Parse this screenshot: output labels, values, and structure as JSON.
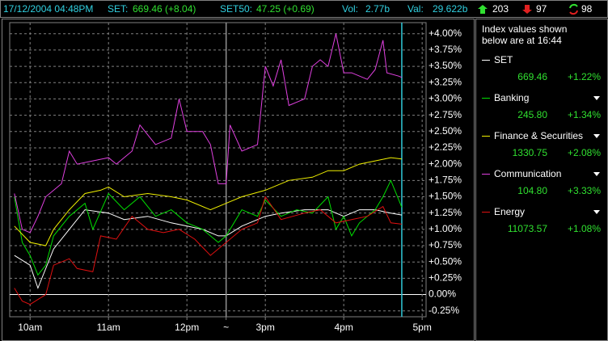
{
  "header": {
    "datetime": "17/12/2004 04:48PM",
    "set_label": "SET:",
    "set_value": "669.46 (+8.04)",
    "set50_label": "SET50:",
    "set50_value": "47.25 (+0.69)",
    "vol_label": "Vol:",
    "vol": "2.77b",
    "val_label": "Val:",
    "val": "29.622b",
    "advances": "203",
    "declines": "97",
    "unchanged": "98"
  },
  "sidebar": {
    "note": "Index values shown below are at 16:44",
    "items": [
      {
        "value": "669.46",
        "change": "+1.22%"
      },
      {
        "value": "245.80",
        "change": "+1.34%"
      },
      {
        "value": "1330.75",
        "change": "+2.08%"
      },
      {
        "value": "104.80",
        "change": "+3.33%"
      },
      {
        "value": "11073.57",
        "change": "+1.08%"
      }
    ]
  },
  "chart_data": {
    "type": "line",
    "xlim": [
      -0.26,
      5.05
    ],
    "ylim": [
      -0.34,
      4.17
    ],
    "xticks": [
      {
        "value": 0,
        "label": "10am"
      },
      {
        "value": 1,
        "label": "11am"
      },
      {
        "value": 2,
        "label": "12pm"
      },
      {
        "value": 2.5,
        "label": "~"
      },
      {
        "value": 3,
        "label": "3pm"
      },
      {
        "value": 4,
        "label": "4pm"
      },
      {
        "value": 5,
        "label": "5pm"
      }
    ],
    "yticks": [
      {
        "value": -0.25,
        "label": "-0.25%"
      },
      {
        "value": 0,
        "label": "0.00%"
      },
      {
        "value": 0.25,
        "label": "+0.25%"
      },
      {
        "value": 0.5,
        "label": "+0.50%"
      },
      {
        "value": 0.75,
        "label": "+0.75%"
      },
      {
        "value": 1,
        "label": "+1.00%"
      },
      {
        "value": 1.25,
        "label": "+1.25%"
      },
      {
        "value": 1.5,
        "label": "+1.50%"
      },
      {
        "value": 1.75,
        "label": "+1.75%"
      },
      {
        "value": 2,
        "label": "+2.00%"
      },
      {
        "value": 2.25,
        "label": "+2.25%"
      },
      {
        "value": 2.5,
        "label": "+2.50%"
      },
      {
        "value": 2.75,
        "label": "+2.75%"
      },
      {
        "value": 3,
        "label": "+3.00%"
      },
      {
        "value": 3.25,
        "label": "+3.25%"
      },
      {
        "value": 3.5,
        "label": "+3.50%"
      },
      {
        "value": 3.75,
        "label": "+3.75%"
      },
      {
        "value": 4,
        "label": "+4.00%"
      }
    ],
    "grid": true,
    "vlines": [
      {
        "x": 2.5,
        "color": "#909090"
      },
      {
        "x": 4.74,
        "color": "#30c8d8"
      }
    ],
    "series": [
      {
        "name": "SET",
        "color": "#ffffff",
        "x": [
          -0.2,
          0,
          0.1,
          0.3,
          0.5,
          0.7,
          1,
          1.2,
          1.5,
          1.8,
          2,
          2.2,
          2.4,
          2.5,
          2.7,
          3,
          3.2,
          3.5,
          3.8,
          4,
          4.2,
          4.4,
          4.6,
          4.74
        ],
        "values": [
          0.6,
          0.45,
          0.1,
          0.7,
          1.0,
          1.3,
          1.25,
          1.15,
          1.2,
          1.1,
          1.05,
          1.0,
          0.9,
          0.9,
          1.05,
          1.2,
          1.25,
          1.3,
          1.3,
          1.2,
          1.3,
          1.3,
          1.25,
          1.22
        ]
      },
      {
        "name": "Banking",
        "color": "#00e000",
        "x": [
          -0.2,
          -0.1,
          0,
          0.1,
          0.2,
          0.3,
          0.5,
          0.7,
          0.8,
          1,
          1.2,
          1.4,
          1.6,
          1.8,
          2,
          2.2,
          2.4,
          2.5,
          2.7,
          2.9,
          3,
          3.2,
          3.4,
          3.6,
          3.8,
          3.9,
          4,
          4.1,
          4.2,
          4.4,
          4.5,
          4.6,
          4.74
        ],
        "values": [
          1.5,
          0.8,
          0.6,
          0.3,
          0.45,
          0.9,
          1.2,
          1.4,
          1.0,
          1.55,
          1.3,
          1.5,
          1.2,
          1.3,
          1.1,
          1.0,
          0.8,
          0.9,
          1.3,
          1.2,
          1.45,
          1.2,
          1.3,
          1.25,
          1.5,
          1.0,
          1.2,
          0.9,
          1.1,
          1.3,
          1.5,
          1.75,
          1.34
        ]
      },
      {
        "name": "Finance & Securities",
        "color": "#f0f000",
        "x": [
          -0.2,
          0,
          0.2,
          0.3,
          0.5,
          0.7,
          0.9,
          1,
          1.2,
          1.5,
          1.8,
          2,
          2.3,
          2.5,
          2.7,
          3,
          3.3,
          3.6,
          3.8,
          4,
          4.2,
          4.4,
          4.6,
          4.74
        ],
        "values": [
          1.05,
          0.8,
          0.75,
          1.0,
          1.3,
          1.55,
          1.6,
          1.65,
          1.5,
          1.55,
          1.5,
          1.45,
          1.3,
          1.4,
          1.5,
          1.6,
          1.75,
          1.8,
          1.9,
          1.9,
          2.0,
          2.05,
          2.1,
          2.08
        ]
      },
      {
        "name": "Communication",
        "color": "#e040e0",
        "x": [
          -0.2,
          -0.1,
          0,
          0.1,
          0.2,
          0.4,
          0.5,
          0.6,
          0.8,
          1,
          1.1,
          1.3,
          1.4,
          1.6,
          1.8,
          1.9,
          2,
          2.2,
          2.3,
          2.4,
          2.5,
          2.55,
          2.7,
          2.9,
          3,
          3.1,
          3.2,
          3.3,
          3.5,
          3.6,
          3.7,
          3.8,
          3.9,
          4,
          4.1,
          4.3,
          4.4,
          4.5,
          4.55,
          4.7,
          4.74
        ],
        "values": [
          1.55,
          1.0,
          0.95,
          1.2,
          1.5,
          1.7,
          2.2,
          2.0,
          2.05,
          2.1,
          2.0,
          2.2,
          2.6,
          2.3,
          2.4,
          3.0,
          2.5,
          2.5,
          2.3,
          1.7,
          1.7,
          2.6,
          2.2,
          2.3,
          3.5,
          3.2,
          3.6,
          2.9,
          3.0,
          3.5,
          3.6,
          3.5,
          4.0,
          3.4,
          3.4,
          3.3,
          3.45,
          3.9,
          3.4,
          3.35,
          3.33
        ]
      },
      {
        "name": "Energy",
        "color": "#e01010",
        "x": [
          -0.2,
          -0.1,
          0,
          0.2,
          0.3,
          0.5,
          0.6,
          0.8,
          0.9,
          1.1,
          1.3,
          1.5,
          1.7,
          1.9,
          2.1,
          2.3,
          2.5,
          2.7,
          2.9,
          3,
          3.2,
          3.5,
          3.7,
          3.9,
          4.1,
          4.3,
          4.5,
          4.6,
          4.74
        ],
        "values": [
          0.1,
          -0.1,
          -0.15,
          0.0,
          0.45,
          0.55,
          0.4,
          0.35,
          0.9,
          0.85,
          1.2,
          1.0,
          0.95,
          1.0,
          0.85,
          0.6,
          0.8,
          1.0,
          1.1,
          1.5,
          1.15,
          1.25,
          1.3,
          1.1,
          1.15,
          1.2,
          1.35,
          1.1,
          1.08
        ]
      }
    ]
  }
}
